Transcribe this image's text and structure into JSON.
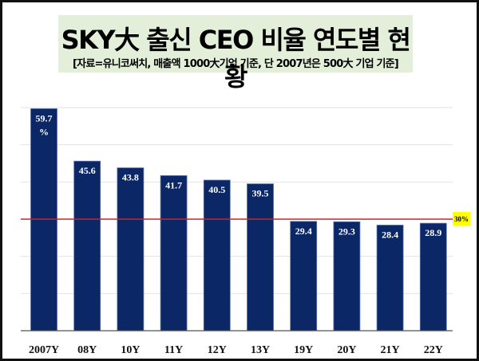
{
  "chart_data": {
    "type": "bar",
    "title": "SKY大 출신 CEO 비율 연도별 현황",
    "subtitle": "[자료=유니코써치, 매출액 1000大기업  기준, 단 2007년은 500大 기업 기준]",
    "categories": [
      "2007Y",
      "08Y",
      "10Y",
      "11Y",
      "12Y",
      "13Y",
      "19Y",
      "20Y",
      "21Y",
      "22Y"
    ],
    "values": [
      59.7,
      45.6,
      43.8,
      41.7,
      40.5,
      39.5,
      29.4,
      29.3,
      28.4,
      28.9
    ],
    "data_labels": [
      "59.7 %",
      "45.6",
      "43.8",
      "41.7",
      "40.5",
      "39.5",
      "29.4",
      "29.3",
      "28.4",
      "28.9"
    ],
    "ylim": [
      0,
      60
    ],
    "grid": true,
    "reference_line": {
      "value": 30,
      "label": "30%",
      "color": "#c0282d",
      "label_bg": "#ffff00"
    },
    "bar_color": "#0b2766",
    "title_bg": "#e3efd9"
  }
}
